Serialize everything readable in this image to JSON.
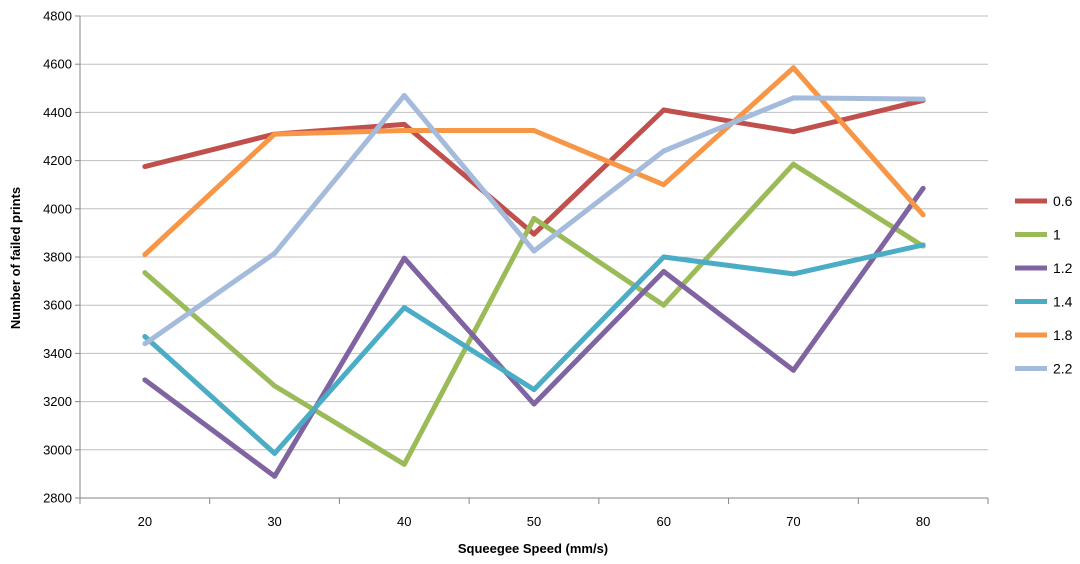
{
  "chart_data": {
    "type": "line",
    "title": "",
    "xlabel": "Squeegee Speed (mm/s)",
    "ylabel": "Number of failed prints",
    "categories": [
      "20",
      "30",
      "40",
      "50",
      "60",
      "70",
      "80"
    ],
    "ylim": [
      2800,
      4800
    ],
    "yticks": [
      "2800",
      "3000",
      "3200",
      "3400",
      "3600",
      "3800",
      "4000",
      "4200",
      "4400",
      "4600",
      "4800"
    ],
    "grid": true,
    "legend_position": "right",
    "series": [
      {
        "name": "0.6",
        "color": "#C0504D",
        "values": [
          4175,
          4310,
          4350,
          3895,
          4410,
          4320,
          4450
        ]
      },
      {
        "name": "1",
        "color": "#9BBB59",
        "values": [
          3735,
          3265,
          2940,
          3960,
          3600,
          4185,
          3845
        ]
      },
      {
        "name": "1.2",
        "color": "#8064A2",
        "values": [
          3290,
          2890,
          3795,
          3190,
          3740,
          3330,
          4085
        ]
      },
      {
        "name": "1.4",
        "color": "#4BACC6",
        "values": [
          3470,
          2985,
          3590,
          3250,
          3800,
          3730,
          3850
        ]
      },
      {
        "name": "1.8",
        "color": "#F79646",
        "values": [
          3810,
          4310,
          4325,
          4325,
          4100,
          4585,
          3975
        ]
      },
      {
        "name": "2.2",
        "color": "#A5BBDC",
        "values": [
          3440,
          3815,
          4470,
          3825,
          4240,
          4460,
          4455
        ]
      }
    ]
  }
}
